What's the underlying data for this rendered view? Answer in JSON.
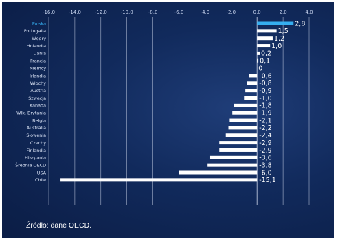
{
  "chart_data": {
    "type": "bar",
    "orientation": "horizontal",
    "categories": [
      "Polska",
      "Portugalia",
      "Węgry",
      "Holandia",
      "Dania",
      "Francja",
      "Niemcy",
      "Irlandia",
      "Włochy",
      "Austria",
      "Szwecja",
      "Kanada",
      "Wlk. Brytania",
      "Belgia",
      "Australia",
      "Słowenia",
      "Czechy",
      "Finlandia",
      "Hiszpania",
      "Średnia OECD",
      "USA",
      "Chile"
    ],
    "values": [
      2.8,
      1.5,
      1.2,
      1.0,
      0.2,
      0.1,
      0,
      -0.6,
      -0.8,
      -0.9,
      -1.0,
      -1.8,
      -1.9,
      -2.1,
      -2.2,
      -2.4,
      -2.9,
      -2.9,
      -3.6,
      -3.8,
      -6.0,
      -15.1
    ],
    "value_labels": [
      "2,8",
      "1,5",
      "1,2",
      "1,0",
      "0,2",
      "0,1",
      "0",
      "-0,6",
      "-0,8",
      "-0,9",
      "-1,0",
      "-1,8",
      "-1,9",
      "-2,1",
      "-2,2",
      "-2,4",
      "-2,9",
      "-2,9",
      "-3,6",
      "-3,8",
      "-6,0",
      "-15,1"
    ],
    "highlight": "Polska",
    "xlim": [
      -16,
      4
    ],
    "xticks": [
      -16,
      -14,
      -12,
      -10,
      -8,
      -6,
      -4,
      -2,
      0,
      2,
      4
    ],
    "xtick_labels": [
      "-16,0",
      "-14,0",
      "-12,0",
      "-10,0",
      "-8,0",
      "-6,0",
      "-4,0",
      "-2,0",
      "0,0",
      "2,0",
      "4,0"
    ],
    "grid": true,
    "colors": {
      "bar": "#ffffff",
      "highlight_bar": "#35aef0",
      "background": "#112a5c"
    }
  },
  "source": "Źródło: dane OECD."
}
